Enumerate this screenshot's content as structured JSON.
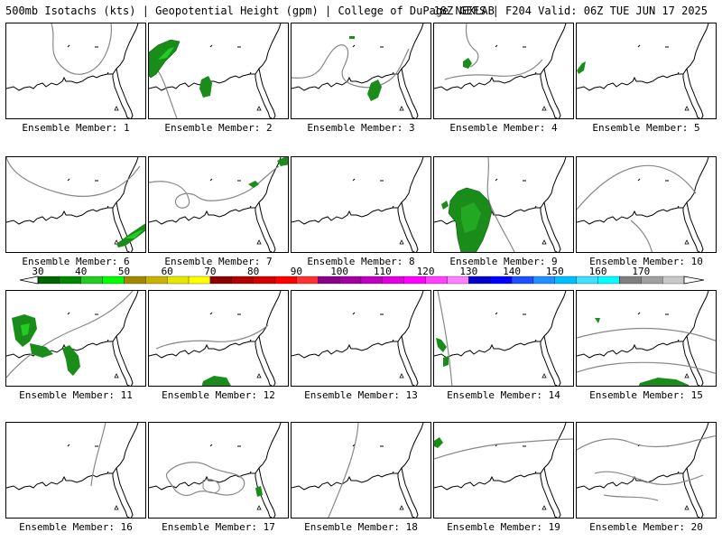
{
  "header": {
    "left": "500mb Isotachs (kts) | Geopotential Height (gpm) | College of DuPage NEXLAB",
    "right": "18Z GEFS | F204 Valid: 06Z TUE JUN 17 2025"
  },
  "colors": {
    "isotach_green": "#1a8c1a",
    "height_contour": "#888888",
    "coast": "#000000"
  },
  "colorbar": {
    "labels": [
      "30",
      "40",
      "50",
      "60",
      "70",
      "80",
      "90",
      "100",
      "110",
      "120",
      "130",
      "140",
      "150",
      "160",
      "170"
    ],
    "colors": [
      "#006400",
      "#008800",
      "#22cc22",
      "#00ff00",
      "#a08800",
      "#c8b400",
      "#e6e600",
      "#ffff00",
      "#8b0000",
      "#b00000",
      "#d40000",
      "#ff0000",
      "#ff3030",
      "#8b008b",
      "#a000a0",
      "#c000c0",
      "#e000e0",
      "#ff00ff",
      "#ff40ff",
      "#ff80ff",
      "#0000cd",
      "#0000ff",
      "#1e50ff",
      "#1e90ff",
      "#00bfff",
      "#40e0ff",
      "#00ffff",
      "#7f7f7f",
      "#a0a0a0",
      "#c8c8c8"
    ]
  },
  "members": [
    {
      "label": "Ensemble Member: 1"
    },
    {
      "label": "Ensemble Member: 2"
    },
    {
      "label": "Ensemble Member: 3"
    },
    {
      "label": "Ensemble Member: 4"
    },
    {
      "label": "Ensemble Member: 5"
    },
    {
      "label": "Ensemble Member: 6"
    },
    {
      "label": "Ensemble Member: 7"
    },
    {
      "label": "Ensemble Member: 8"
    },
    {
      "label": "Ensemble Member: 9"
    },
    {
      "label": "Ensemble Member: 10"
    },
    {
      "label": "Ensemble Member: 11"
    },
    {
      "label": "Ensemble Member: 12"
    },
    {
      "label": "Ensemble Member: 13"
    },
    {
      "label": "Ensemble Member: 14"
    },
    {
      "label": "Ensemble Member: 15"
    },
    {
      "label": "Ensemble Member: 16"
    },
    {
      "label": "Ensemble Member: 17"
    },
    {
      "label": "Ensemble Member: 18"
    },
    {
      "label": "Ensemble Member: 19"
    },
    {
      "label": "Ensemble Member: 20"
    }
  ]
}
